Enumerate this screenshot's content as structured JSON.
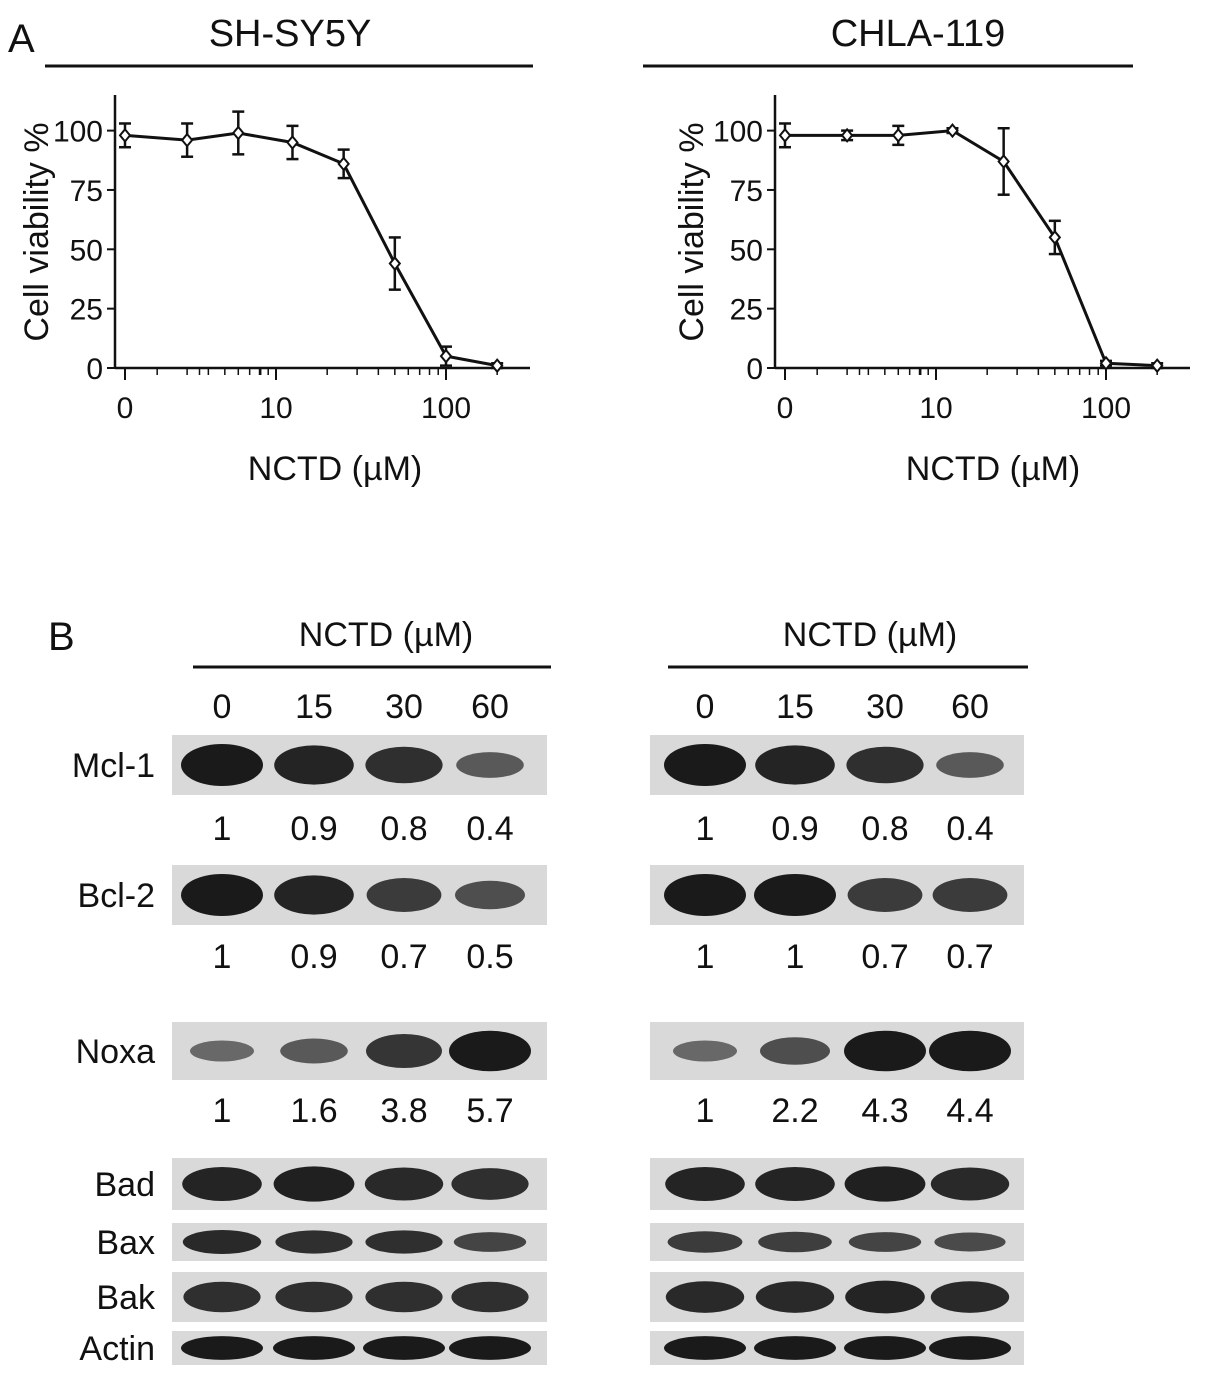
{
  "panelA": {
    "label": "A",
    "xlabel": "NCTD (µM)",
    "ylabel": "Cell viability %"
  },
  "chart_data": [
    {
      "type": "line",
      "title": "SH-SY5Y",
      "xlabel": "NCTD (µM)",
      "ylabel": "Cell viability %",
      "x_scale": "log (leftmost point plotted at position labelled 0)",
      "x_tick_labels": [
        "0",
        "10",
        "100"
      ],
      "y_tick_labels": [
        "0",
        "25",
        "50",
        "75",
        "100"
      ],
      "ylim": [
        0,
        115
      ],
      "x": [
        0,
        3,
        6,
        12.5,
        25,
        50,
        100,
        200
      ],
      "y": [
        98,
        96,
        99,
        95,
        86,
        44,
        5,
        1
      ],
      "error": [
        5,
        7,
        9,
        7,
        6,
        11,
        4,
        1
      ],
      "grid": false
    },
    {
      "type": "line",
      "title": "CHLA-119",
      "xlabel": "NCTD (µM)",
      "ylabel": "Cell viability %",
      "x_scale": "log (leftmost point plotted at position labelled 0)",
      "x_tick_labels": [
        "0",
        "10",
        "100"
      ],
      "y_tick_labels": [
        "0",
        "25",
        "50",
        "75",
        "100"
      ],
      "ylim": [
        0,
        115
      ],
      "x": [
        0,
        3,
        6,
        12.5,
        25,
        50,
        100,
        200
      ],
      "y": [
        98,
        98,
        98,
        100,
        87,
        55,
        2,
        1
      ],
      "error": [
        5,
        2,
        4,
        1,
        14,
        7,
        1,
        1
      ],
      "grid": false
    }
  ],
  "panelB": {
    "label": "B",
    "header": "NCTD (µM)",
    "doses": [
      "0",
      "15",
      "30",
      "60"
    ],
    "blots": [
      {
        "protein": "Mcl-1",
        "left_values": [
          "1",
          "0.9",
          "0.8",
          "0.4"
        ],
        "right_values": [
          "1",
          "0.9",
          "0.8",
          "0.4"
        ],
        "left_intensity": [
          1,
          0.9,
          0.8,
          0.4
        ],
        "right_intensity": [
          1,
          0.9,
          0.8,
          0.4
        ]
      },
      {
        "protein": "Bcl-2",
        "left_values": [
          "1",
          "0.9",
          "0.7",
          "0.5"
        ],
        "right_values": [
          "1",
          "1",
          "0.7",
          "0.7"
        ],
        "left_intensity": [
          1,
          0.9,
          0.7,
          0.5
        ],
        "right_intensity": [
          1,
          1,
          0.7,
          0.7
        ]
      },
      {
        "protein": "Noxa",
        "left_values": [
          "1",
          "1.6",
          "3.8",
          "5.7"
        ],
        "right_values": [
          "1",
          "2.2",
          "4.3",
          "4.4"
        ],
        "left_intensity": [
          0.25,
          0.4,
          0.75,
          1
        ],
        "right_intensity": [
          0.25,
          0.5,
          1,
          1
        ]
      },
      {
        "protein": "Bad",
        "left_values": [],
        "right_values": [],
        "left_intensity": [
          0.9,
          0.95,
          0.85,
          0.8
        ],
        "right_intensity": [
          0.9,
          0.9,
          0.95,
          0.85
        ]
      },
      {
        "protein": "Bax",
        "left_values": [],
        "right_values": [],
        "left_intensity": [
          0.85,
          0.8,
          0.8,
          0.6
        ],
        "right_intensity": [
          0.7,
          0.65,
          0.6,
          0.55
        ]
      },
      {
        "protein": "Bak",
        "left_values": [],
        "right_values": [],
        "left_intensity": [
          0.8,
          0.8,
          0.8,
          0.8
        ],
        "right_intensity": [
          0.85,
          0.85,
          0.9,
          0.85
        ]
      },
      {
        "protein": "Actin",
        "left_values": [],
        "right_values": [],
        "left_intensity": [
          1,
          1,
          1,
          1
        ],
        "right_intensity": [
          1,
          1,
          1,
          1
        ]
      }
    ]
  },
  "colors": {
    "ink": "#111111",
    "blot_bg": "#d9d9d9",
    "band": "#1a1a1a"
  }
}
